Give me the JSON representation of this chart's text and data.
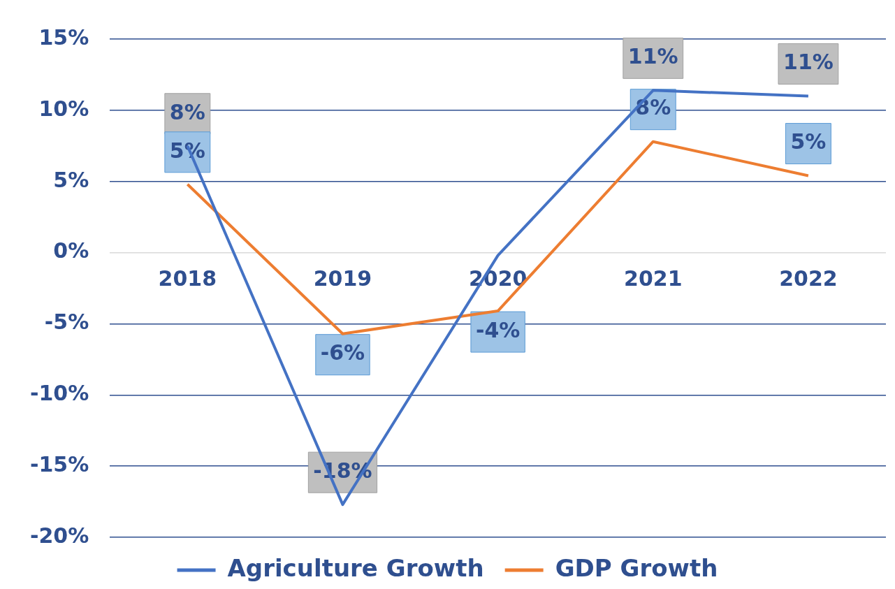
{
  "chart_data": {
    "type": "line",
    "categories": [
      "2018",
      "2019",
      "2020",
      "2021",
      "2022"
    ],
    "series": [
      {
        "name": "Agriculture Growth",
        "color": "#4472c4",
        "values": [
          7.5,
          -17.7,
          -0.2,
          11.4,
          11.0
        ],
        "value_labels": [
          "8%",
          "-18%",
          null,
          "11%",
          "11%"
        ]
      },
      {
        "name": "GDP Growth",
        "color": "#ed7d31",
        "values": [
          4.8,
          -5.7,
          -4.1,
          7.8,
          5.4
        ],
        "value_labels": [
          "5%",
          "-6%",
          "-4%",
          "8%",
          "5%"
        ]
      }
    ],
    "ylim": [
      -20,
      15
    ],
    "yticks": [
      {
        "value": -20,
        "label": "-20%"
      },
      {
        "value": -15,
        "label": "-15%"
      },
      {
        "value": -10,
        "label": "-10%"
      },
      {
        "value": -5,
        "label": "-5%"
      },
      {
        "value": 0,
        "label": "0%"
      },
      {
        "value": 5,
        "label": "5%"
      },
      {
        "value": 10,
        "label": "10%"
      },
      {
        "value": 15,
        "label": "15%"
      }
    ],
    "grid": "y",
    "legend": "bottom",
    "marker": "none",
    "line_style": "solid"
  }
}
